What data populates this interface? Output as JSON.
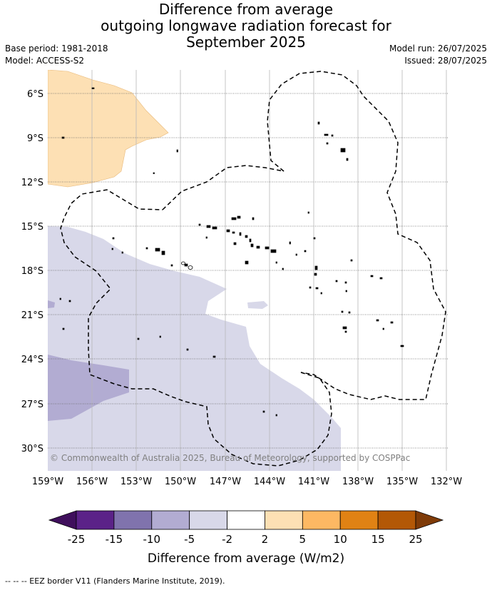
{
  "title": {
    "line1": "Difference from average",
    "line2": "outgoing longwave radiation forecast for",
    "line3": "September 2025"
  },
  "meta": {
    "base_period": "Base period: 1981-2018",
    "model": "Model: ACCESS-S2",
    "model_run": "Model run: 26/07/2025",
    "issued": "Issued: 28/07/2025"
  },
  "map": {
    "lat_labels": [
      "6°S",
      "9°S",
      "12°S",
      "15°S",
      "18°S",
      "21°S",
      "24°S",
      "27°S",
      "30°S"
    ],
    "lon_labels": [
      "159°W",
      "156°W",
      "153°W",
      "150°W",
      "147°W",
      "144°W",
      "141°W",
      "138°W",
      "135°W",
      "132°W"
    ],
    "copyright": "© Commonwealth of Australia 2025, Bureau of Meteorology, supported by COSPPac",
    "eez_style": "dashed",
    "gridlines": "dotted"
  },
  "colorbar": {
    "ticks": [
      "-25",
      "-15",
      "-10",
      "-5",
      "-2",
      "2",
      "5",
      "10",
      "15",
      "25"
    ],
    "label": "Difference from average (W/m2)",
    "colors": {
      "below": "#3f0f5c",
      "bins": [
        "#5b2288",
        "#8073ad",
        "#b2acd2",
        "#d8d8e9",
        "#ffffff",
        "#fde0b4",
        "#fdb863",
        "#e08214",
        "#b35806"
      ],
      "above": "#7f3b08"
    }
  },
  "footer": "--  --  -- EEZ border V11 (Flanders Marine Institute, 2019)."
}
